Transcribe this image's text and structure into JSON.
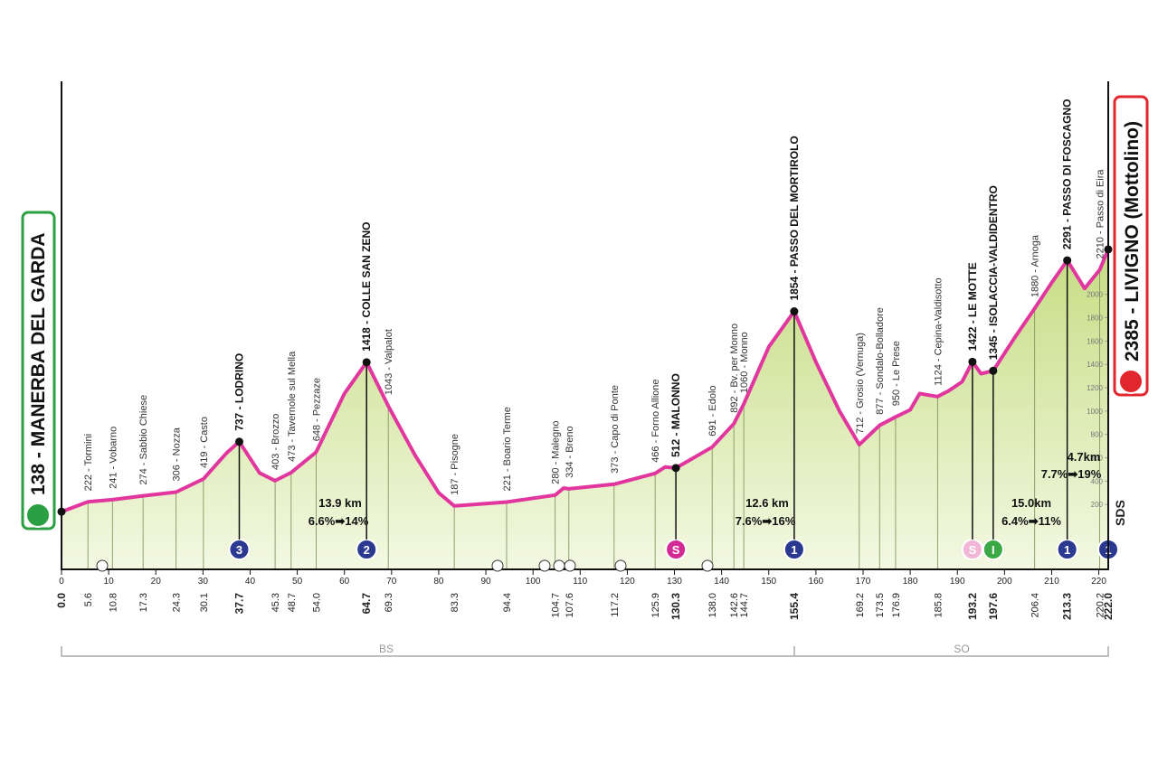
{
  "chart_data": {
    "type": "area",
    "start": "138 - MANERBA DEL GARDA",
    "finish": "2385 - LIVIGNO (Mottolino)",
    "x": [
      0,
      5.6,
      10.8,
      17.3,
      24.3,
      30.1,
      35,
      37.7,
      42,
      45.3,
      48.7,
      54,
      60,
      64.7,
      69.3,
      75,
      80,
      83.3,
      94.4,
      104.7,
      106.5,
      107.6,
      117.2,
      125.9,
      128,
      130.3,
      138,
      142.6,
      144.7,
      150,
      155.4,
      160,
      165,
      169.2,
      173.5,
      176.9,
      180,
      182,
      185.8,
      188,
      191,
      193.2,
      195,
      197.6,
      202,
      206.4,
      210,
      213.3,
      217,
      220.2,
      222
    ],
    "values": [
      138,
      222,
      241,
      274,
      306,
      419,
      640,
      737,
      470,
      403,
      473,
      648,
      1150,
      1418,
      1043,
      620,
      300,
      187,
      221,
      280,
      340,
      334,
      373,
      466,
      520,
      512,
      691,
      892,
      1060,
      1550,
      1854,
      1420,
      1000,
      712,
      877,
      950,
      1010,
      1150,
      1124,
      1170,
      1250,
      1422,
      1320,
      1345,
      1620,
      1880,
      2100,
      2291,
      2050,
      2210,
      2385
    ],
    "color": "#e2369f",
    "fill": "#dbe9a9",
    "xlim": [
      0,
      222
    ],
    "xticks": [
      0,
      10,
      20,
      30,
      40,
      50,
      60,
      70,
      80,
      90,
      100,
      110,
      120,
      130,
      140,
      150,
      160,
      170,
      180,
      190,
      200,
      210,
      220
    ],
    "ylim": [
      0,
      2400
    ],
    "yticks": [
      200,
      400,
      600,
      800,
      1000,
      1200,
      1400,
      1600,
      1800,
      2000
    ],
    "waypoints": [
      {
        "km": {
          "value": 0,
          "label": "0.0"
        },
        "label": null,
        "bold": true
      },
      {
        "km": 5.6,
        "label": "222 - Tormini",
        "bold": false
      },
      {
        "km": 10.8,
        "label": "241 - Vobarno",
        "bold": false
      },
      {
        "km": 17.3,
        "label": "274 - Sabbio Chiese",
        "bold": false
      },
      {
        "km": 24.3,
        "label": "306 - Nozza",
        "bold": false
      },
      {
        "km": 30.1,
        "label": "419 - Casto",
        "bold": false
      },
      {
        "km": 37.7,
        "label": "737 - LODRINO",
        "bold": true
      },
      {
        "km": 45.3,
        "label": "403 - Brozzo",
        "bold": false
      },
      {
        "km": 48.7,
        "label": "473 - Tavernole sul Mella",
        "bold": false
      },
      {
        "km": {
          "value": 54,
          "label": "54.0"
        },
        "label": "648 - Pezzaze",
        "bold": false
      },
      {
        "km": 64.7,
        "label": "1418 - COLLE SAN ZENO",
        "bold": true
      },
      {
        "km": 69.3,
        "label": "1043 - Valpalot",
        "bold": false
      },
      {
        "km": 83.3,
        "label": "187 - Pisogne",
        "bold": false
      },
      {
        "km": 94.4,
        "label": "221 - Boario Terme",
        "bold": false
      },
      {
        "km": 104.7,
        "label": "280 - Malegno",
        "bold": false
      },
      {
        "km": 107.6,
        "label": "334 - Breno",
        "bold": false
      },
      {
        "km": 117.2,
        "label": "373 - Capo di Ponte",
        "bold": false
      },
      {
        "km": 125.9,
        "label": "466 - Forno Allione",
        "bold": false
      },
      {
        "km": 130.3,
        "label": "512 - MALONNO",
        "bold": true
      },
      {
        "km": {
          "value": 138,
          "label": "138.0"
        },
        "label": "691 - Edolo",
        "bold": false
      },
      {
        "km": 142.6,
        "label": "892 - Bv. per Monno",
        "bold": false
      },
      {
        "km": 144.7,
        "label": "1060 - Monno",
        "bold": false
      },
      {
        "km": 155.4,
        "label": "1854 - PASSO DEL MORTIROLO",
        "bold": true
      },
      {
        "km": 169.2,
        "label": "712 - Grosio (Vernuga)",
        "bold": false
      },
      {
        "km": 173.5,
        "label": "877 - Sondalo-Bolladore",
        "bold": false
      },
      {
        "km": 176.9,
        "label": "950 - Le Prese",
        "bold": false
      },
      {
        "km": 185.8,
        "label": "1124 - Cepina-Valdisotto",
        "bold": false
      },
      {
        "km": 193.2,
        "label": "1422 - LE MOTTE",
        "bold": true
      },
      {
        "km": 197.6,
        "label": "1345 - ISOLACCIA-VALDIDENTRO",
        "bold": true
      },
      {
        "km": 206.4,
        "label": "1880 - Arnoga",
        "bold": false
      },
      {
        "km": 213.3,
        "label": "2291 - PASSO DI FOSCAGNO",
        "bold": true
      },
      {
        "km": 220.2,
        "label": "2210 - Passo di Eira",
        "bold": false
      },
      {
        "km": {
          "value": 222,
          "label": "222.0"
        },
        "label": null,
        "bold": true
      }
    ],
    "climbs": [
      {
        "km": 37.7,
        "label": "3",
        "color": "#2b3990"
      },
      {
        "km": 64.7,
        "label": "2",
        "color": "#2b3990"
      },
      {
        "km": 130.3,
        "label": "S",
        "color": "#d42a96"
      },
      {
        "km": 155.4,
        "label": "1",
        "color": "#2b3990"
      },
      {
        "km": 193.2,
        "label": "S",
        "color": "#f2b6d6"
      },
      {
        "km": 197.6,
        "label": "I",
        "color": "#3aa844"
      },
      {
        "km": 213.3,
        "label": "1",
        "color": "#2b3990"
      },
      {
        "km": 222,
        "label": "1",
        "color": "#2b3990"
      }
    ],
    "gradients": [
      {
        "distance": "13.9 km",
        "slope": "6.6%➡14%"
      },
      {
        "distance": "12.6 km",
        "slope": "7.6%➡16%"
      },
      {
        "distance": "15.0km",
        "slope": "6.4%➡11%"
      },
      {
        "distance": "4.7km",
        "slope": "7.7%➡19%"
      }
    ],
    "regions": [
      "BS",
      "SO"
    ],
    "logo": "SDS"
  }
}
